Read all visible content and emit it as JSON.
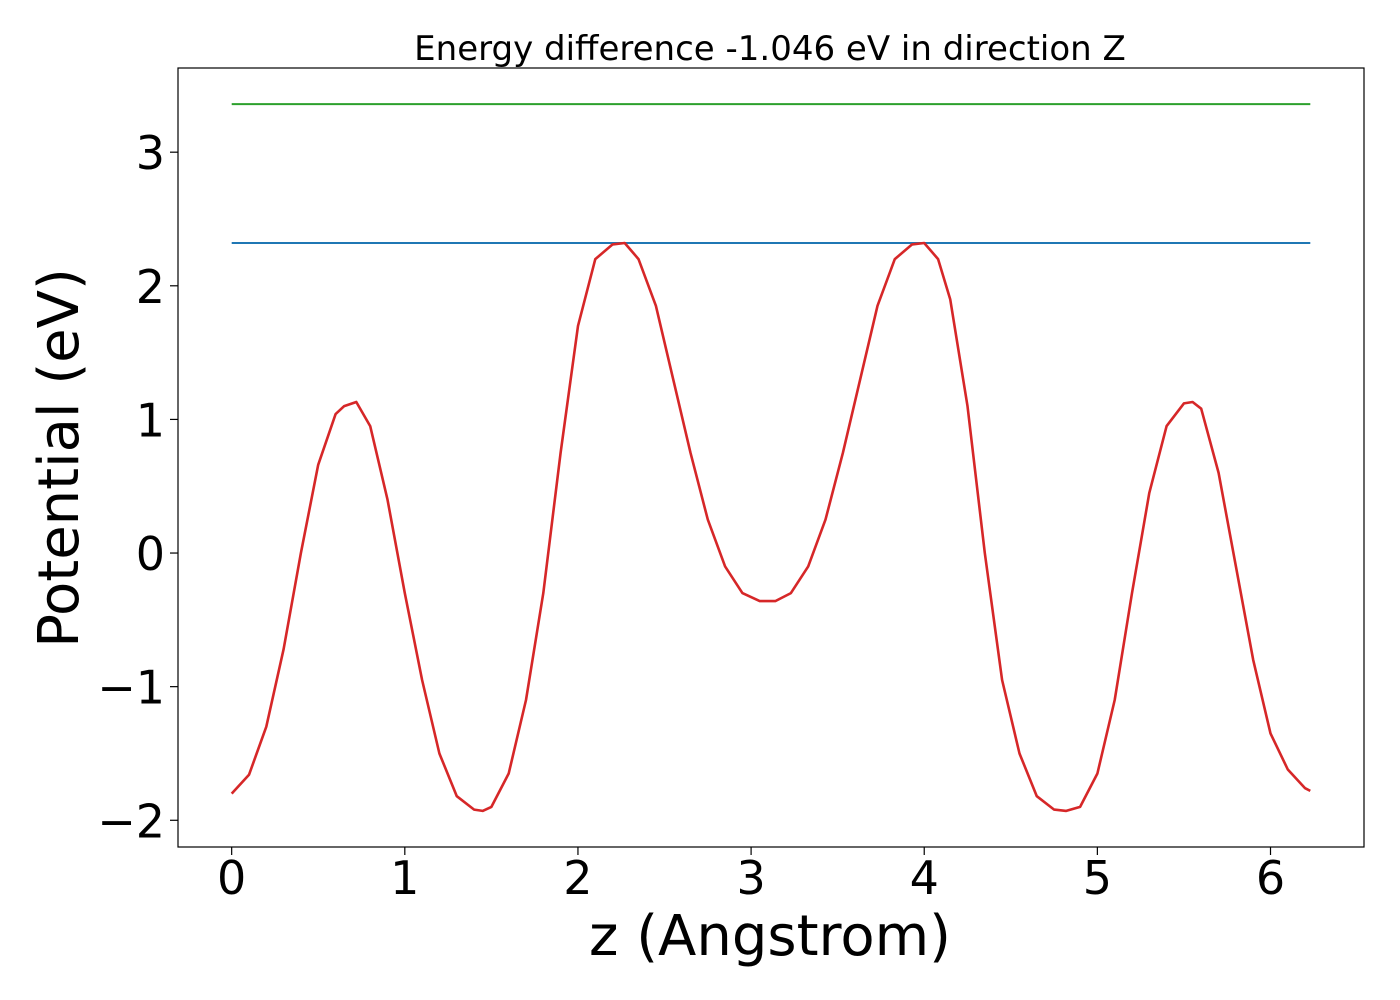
{
  "chart_data": {
    "type": "line",
    "title": "Energy difference -1.046 eV in direction Z",
    "xlabel": "z (Angstrom)",
    "ylabel": "Potential (eV)",
    "xlim": [
      -0.31,
      6.54
    ],
    "ylim": [
      -2.2,
      3.63
    ],
    "grid": false,
    "x_ticks": [
      0,
      1,
      2,
      3,
      4,
      5,
      6
    ],
    "y_ticks": [
      -2,
      -1,
      0,
      1,
      2,
      3
    ],
    "x_tick_labels": [
      "0",
      "1",
      "2",
      "3",
      "4",
      "5",
      "6"
    ],
    "y_tick_labels": [
      "−2",
      "−1",
      "0",
      "1",
      "2",
      "3"
    ],
    "series": [
      {
        "color": "#d62728",
        "x": [
          0.0,
          0.1,
          0.2,
          0.3,
          0.4,
          0.5,
          0.6,
          0.65,
          0.72,
          0.8,
          0.9,
          1.0,
          1.1,
          1.2,
          1.3,
          1.4,
          1.45,
          1.5,
          1.6,
          1.7,
          1.8,
          1.9,
          2.0,
          2.1,
          2.2,
          2.27,
          2.35,
          2.45,
          2.55,
          2.65,
          2.75,
          2.85,
          2.95,
          3.05,
          3.14,
          3.23,
          3.33,
          3.43,
          3.53,
          3.63,
          3.73,
          3.83,
          3.93,
          4.0,
          4.08,
          4.15,
          4.25,
          4.35,
          4.45,
          4.55,
          4.65,
          4.75,
          4.82,
          4.9,
          5.0,
          5.1,
          5.2,
          5.3,
          5.4,
          5.5,
          5.55,
          5.6,
          5.7,
          5.8,
          5.9,
          6.0,
          6.1,
          6.2,
          6.23
        ],
        "values": [
          -1.8,
          -1.66,
          -1.3,
          -0.72,
          0.0,
          0.66,
          1.04,
          1.1,
          1.13,
          0.95,
          0.4,
          -0.3,
          -0.95,
          -1.5,
          -1.82,
          -1.92,
          -1.93,
          -1.9,
          -1.65,
          -1.1,
          -0.3,
          0.75,
          1.7,
          2.2,
          2.31,
          2.32,
          2.2,
          1.85,
          1.3,
          0.75,
          0.25,
          -0.1,
          -0.3,
          -0.36,
          -0.36,
          -0.3,
          -0.1,
          0.25,
          0.75,
          1.3,
          1.85,
          2.2,
          2.31,
          2.32,
          2.2,
          1.9,
          1.1,
          0.0,
          -0.95,
          -1.5,
          -1.82,
          -1.92,
          -1.93,
          -1.9,
          -1.65,
          -1.1,
          -0.3,
          0.45,
          0.95,
          1.12,
          1.13,
          1.08,
          0.6,
          -0.1,
          -0.8,
          -1.35,
          -1.62,
          -1.76,
          -1.78
        ]
      },
      {
        "color": "#1f77b4",
        "x": [
          0.0,
          6.23
        ],
        "values": [
          2.32,
          2.32
        ]
      },
      {
        "color": "#2ca02c",
        "x": [
          0.0,
          6.23
        ],
        "values": [
          3.36,
          3.36
        ]
      }
    ]
  }
}
